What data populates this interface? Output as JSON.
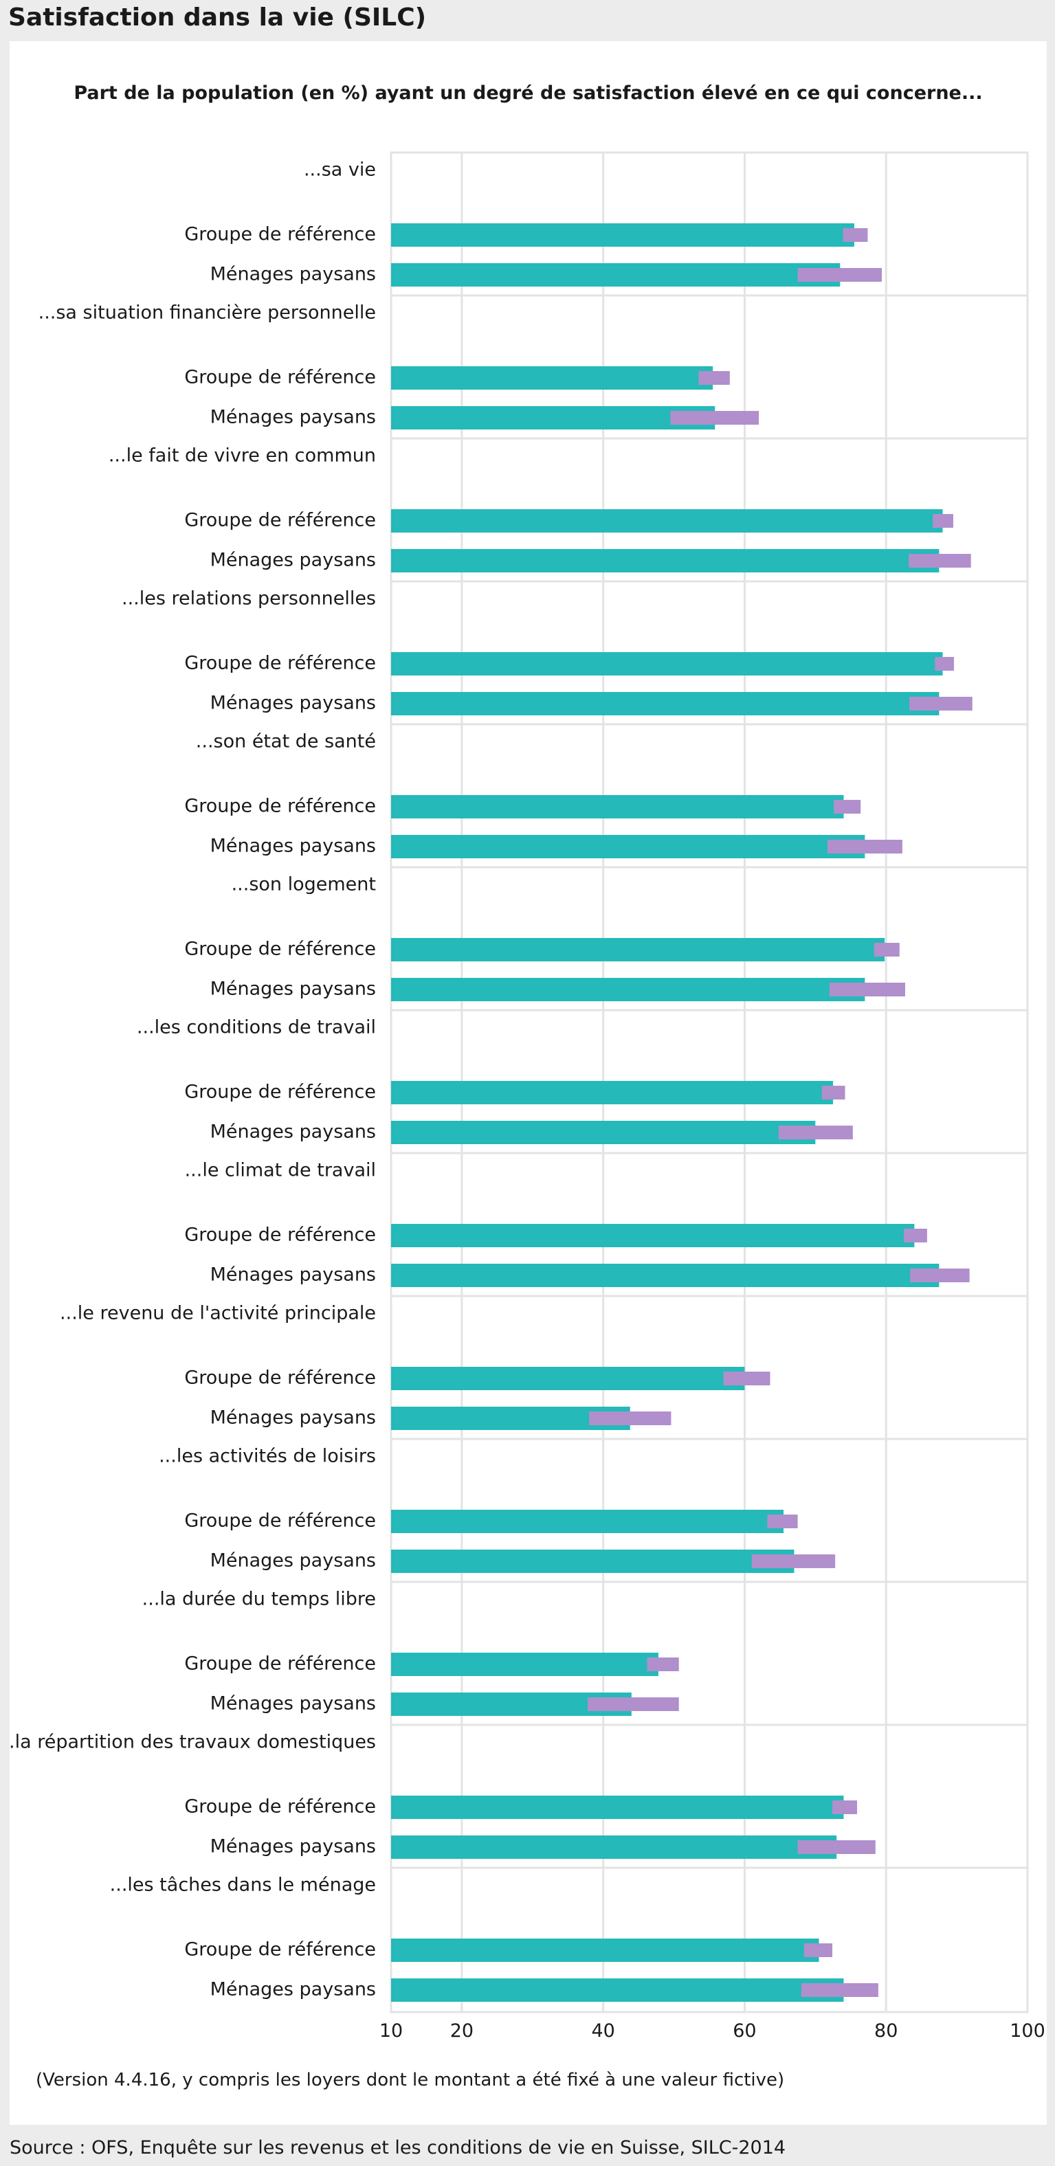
{
  "header": {
    "title": "Satisfaction dans la vie (SILC)"
  },
  "footer": {
    "note": "(Version 4.4.16, y compris les loyers dont le montant a été fixé à une valeur fictive)",
    "source": "Source  : OFS, Enquête sur les revenus et les conditions de vie en Suisse, SILC-2014"
  },
  "colors": {
    "bar": "#25b9b9",
    "interval": "#b08fcc",
    "grid": "#e3e3e3",
    "text": "#1a1a1a"
  },
  "chart_data": {
    "type": "bar",
    "orientation": "horizontal",
    "title": "Part de la population (en %) ayant un degré de satisfaction élevé en ce qui concerne...",
    "xlim": [
      10,
      100
    ],
    "xticks": [
      10,
      20,
      40,
      60,
      80,
      100
    ],
    "grid": true,
    "series_labels": [
      "Groupe de référence",
      "Ménages paysans"
    ],
    "has_confidence_interval": true,
    "groups": [
      {
        "label": "...sa vie",
        "rows": [
          {
            "label": "Groupe de référence",
            "value": 75.5,
            "ci": [
              73.9,
              77.4
            ]
          },
          {
            "label": "Ménages paysans",
            "value": 73.5,
            "ci": [
              67.5,
              79.4
            ]
          }
        ]
      },
      {
        "label": "...sa situation financière personnelle",
        "rows": [
          {
            "label": "Groupe de référence",
            "value": 55.5,
            "ci": [
              53.5,
              57.9
            ]
          },
          {
            "label": "Ménages paysans",
            "value": 55.8,
            "ci": [
              49.5,
              62.0
            ]
          }
        ]
      },
      {
        "label": "...le fait de vivre en commun",
        "rows": [
          {
            "label": "Groupe de référence",
            "value": 88.0,
            "ci": [
              86.6,
              89.5
            ]
          },
          {
            "label": "Ménages paysans",
            "value": 87.5,
            "ci": [
              83.2,
              92.0
            ]
          }
        ]
      },
      {
        "label": "...les relations personnelles",
        "rows": [
          {
            "label": "Groupe de référence",
            "value": 88.0,
            "ci": [
              86.9,
              89.6
            ]
          },
          {
            "label": "Ménages paysans",
            "value": 87.5,
            "ci": [
              83.3,
              92.2
            ]
          }
        ]
      },
      {
        "label": "...son état de santé",
        "rows": [
          {
            "label": "Groupe de référence",
            "value": 74.0,
            "ci": [
              72.6,
              76.4
            ]
          },
          {
            "label": "Ménages paysans",
            "value": 77.0,
            "ci": [
              71.7,
              82.3
            ]
          }
        ]
      },
      {
        "label": "...son logement",
        "rows": [
          {
            "label": "Groupe de référence",
            "value": 79.8,
            "ci": [
              78.3,
              81.9
            ]
          },
          {
            "label": "Ménages paysans",
            "value": 77.0,
            "ci": [
              72.0,
              82.7
            ]
          }
        ]
      },
      {
        "label": "...les conditions de travail",
        "rows": [
          {
            "label": "Groupe de référence",
            "value": 72.5,
            "ci": [
              70.9,
              74.2
            ]
          },
          {
            "label": "Ménages paysans",
            "value": 70.0,
            "ci": [
              64.8,
              75.3
            ]
          }
        ]
      },
      {
        "label": "...le climat de travail",
        "rows": [
          {
            "label": "Groupe de référence",
            "value": 84.0,
            "ci": [
              82.5,
              85.8
            ]
          },
          {
            "label": "Ménages paysans",
            "value": 87.5,
            "ci": [
              83.4,
              91.8
            ]
          }
        ]
      },
      {
        "label": "...le revenu de l'activité principale",
        "rows": [
          {
            "label": "Groupe de référence",
            "value": 60.0,
            "ci": [
              57.0,
              63.6
            ]
          },
          {
            "label": "Ménages paysans",
            "value": 43.8,
            "ci": [
              38.0,
              49.6
            ]
          }
        ]
      },
      {
        "label": "...les activités de loisirs",
        "rows": [
          {
            "label": "Groupe de référence",
            "value": 65.5,
            "ci": [
              63.2,
              67.5
            ]
          },
          {
            "label": "Ménages paysans",
            "value": 67.0,
            "ci": [
              61.0,
              72.8
            ]
          }
        ]
      },
      {
        "label": "...la durée du temps libre",
        "rows": [
          {
            "label": "Groupe de référence",
            "value": 47.8,
            "ci": [
              46.2,
              50.7
            ]
          },
          {
            "label": "Ménages paysans",
            "value": 44.0,
            "ci": [
              37.8,
              50.7
            ]
          }
        ]
      },
      {
        "label": "...la répartition des travaux domestiques",
        "rows": [
          {
            "label": "Groupe de référence",
            "value": 74.0,
            "ci": [
              72.4,
              75.9
            ]
          },
          {
            "label": "Ménages paysans",
            "value": 73.0,
            "ci": [
              67.5,
              78.5
            ]
          }
        ]
      },
      {
        "label": "...les tâches dans le ménage",
        "rows": [
          {
            "label": "Groupe de référence",
            "value": 70.5,
            "ci": [
              68.4,
              72.4
            ]
          },
          {
            "label": "Ménages paysans",
            "value": 74.0,
            "ci": [
              68.0,
              78.9
            ]
          }
        ]
      }
    ]
  }
}
